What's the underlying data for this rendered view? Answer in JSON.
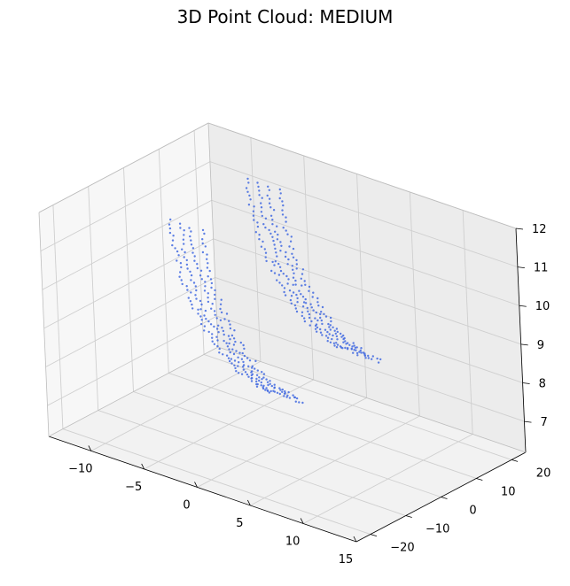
{
  "chart_data": {
    "type": "scatter",
    "title": "3D Point Cloud: MEDIUM",
    "xlabel": "",
    "ylabel": "",
    "zlabel": "",
    "xlim": [
      -14,
      15
    ],
    "ylim": [
      -24,
      24
    ],
    "zlim": [
      6.2,
      12
    ],
    "x_ticks": [
      -10,
      -5,
      0,
      5,
      10,
      15
    ],
    "y_ticks": [
      -20,
      -10,
      0,
      10,
      20
    ],
    "z_ticks": [
      7,
      8,
      9,
      10,
      11,
      12
    ],
    "x_tick_labels": [
      "−10",
      "−5",
      "0",
      "5",
      "10",
      "15"
    ],
    "y_tick_labels": [
      "−20",
      "−10",
      "0",
      "10",
      "20"
    ],
    "z_tick_labels": [
      "7",
      "8",
      "9",
      "10",
      "11",
      "12"
    ],
    "grid": true,
    "series": [
      {
        "color": "#4169e1",
        "marker": "dot",
        "structure": "two stacked bundles of curved strands, each strand descending from near z 11.7 to z 8.1 while moving toward positive x",
        "bundles": [
          {
            "y": 14,
            "strands_x_start": [
              -7.0,
              -6.0,
              -5.0,
              -4.0
            ],
            "x_end": [
              2.0,
              3.0,
              4.0,
              5.0
            ],
            "z_top": 11.7,
            "z_bottom": 8.1
          },
          {
            "y": -8,
            "strands_x_start": [
              -7.0,
              -6.0,
              -5.0,
              -4.0
            ],
            "x_end": [
              2.0,
              3.0,
              4.0,
              5.0
            ],
            "z_top": 11.7,
            "z_bottom": 8.1
          }
        ]
      }
    ]
  }
}
